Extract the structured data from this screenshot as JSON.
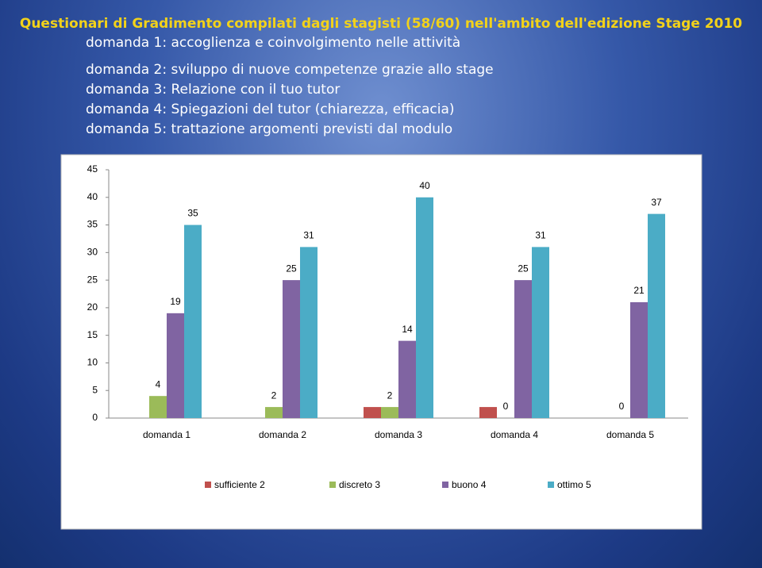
{
  "header": {
    "title": "Questionari di Gradimento compilati dagli stagisti (58/60) nell'ambito dell'edizione Stage 2010",
    "lines": [
      "domanda 1: accoglienza e coinvolgimento nelle attività",
      "domanda 2: sviluppo di nuove competenze grazie allo stage",
      "domanda 3: Relazione con il tuo tutor",
      "domanda 4: Spiegazioni del tutor (chiarezza, efficacia)",
      "domanda 5: trattazione argomenti previsti dal modulo"
    ]
  },
  "chart_data": {
    "type": "bar",
    "categories": [
      "domanda 1",
      "domanda 2",
      "domanda 3",
      "domanda 4",
      "domanda 5"
    ],
    "series": [
      {
        "name": "sufficiente 2",
        "color": "#c0504d",
        "values": [
          0,
          0,
          2,
          2,
          0
        ],
        "data_labels": false
      },
      {
        "name": "discreto 3",
        "color": "#9bbb59",
        "values": [
          4,
          2,
          2,
          0,
          0
        ],
        "data_labels": true
      },
      {
        "name": "buono 4",
        "color": "#8064a2",
        "values": [
          19,
          25,
          14,
          25,
          21
        ],
        "data_labels": true
      },
      {
        "name": "ottimo 5",
        "color": "#4bacc6",
        "values": [
          35,
          31,
          40,
          31,
          37
        ],
        "data_labels": true
      }
    ],
    "ylim": [
      0,
      45
    ],
    "yticks": [
      0,
      5,
      10,
      15,
      20,
      25,
      30,
      35,
      40,
      45
    ],
    "grid": false,
    "legend": "bottom"
  }
}
